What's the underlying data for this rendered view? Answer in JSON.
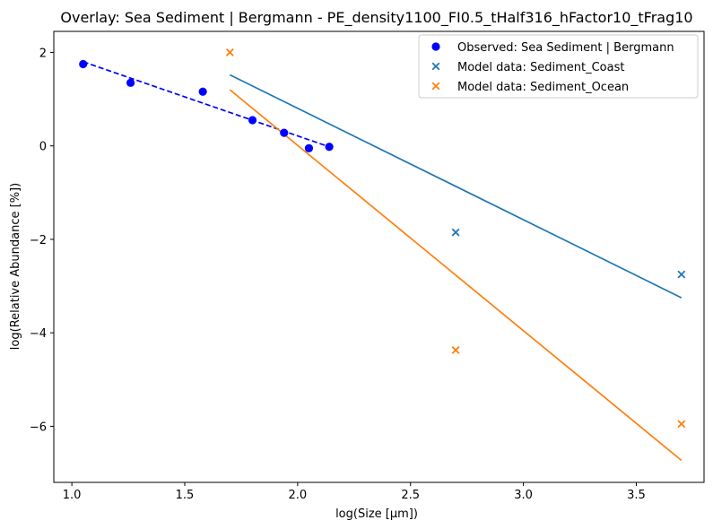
{
  "chart_data": {
    "type": "scatter",
    "title": "Overlay: Sea Sediment | Bergmann - PE_density1100_FI0.5_tHalf316_hFactor10_tFrag10",
    "xlabel": "log(Size [µm])",
    "ylabel": "log(Relative Abundance [%])",
    "xlim": [
      0.92,
      3.8
    ],
    "ylim": [
      -7.2,
      2.45
    ],
    "xticks": [
      1.0,
      1.5,
      2.0,
      2.5,
      3.0,
      3.5
    ],
    "xtick_labels": [
      "1.0",
      "1.5",
      "2.0",
      "2.5",
      "3.0",
      "3.5"
    ],
    "yticks": [
      2,
      0,
      -2,
      -4,
      -6
    ],
    "ytick_labels": [
      "2",
      "0",
      "−2",
      "−4",
      "−6"
    ],
    "grid": true,
    "legend_position": "top-right",
    "series": [
      {
        "name": "Observed: Sea Sediment | Bergmann",
        "kind": "scatter",
        "marker": "circle",
        "color": "#0000ff",
        "x": [
          1.05,
          1.26,
          1.58,
          1.8,
          1.94,
          2.05,
          2.14
        ],
        "y": [
          1.75,
          1.35,
          1.16,
          0.55,
          0.28,
          -0.05,
          -0.02
        ]
      },
      {
        "name": "Model data: Sediment_Coast",
        "kind": "scatter",
        "marker": "x",
        "color": "#1f77b4",
        "x": [
          2.7,
          3.7
        ],
        "y": [
          -1.85,
          -2.75
        ]
      },
      {
        "name": "Model data: Sediment_Ocean",
        "kind": "scatter",
        "marker": "x",
        "color": "#ff7f0e",
        "x": [
          1.7,
          2.7,
          3.7
        ],
        "y": [
          2.0,
          -4.37,
          -5.95
        ]
      }
    ],
    "fit_lines": [
      {
        "color": "#0000ff",
        "style": "dashed",
        "x": [
          1.05,
          2.14
        ],
        "y": [
          1.8,
          -0.02
        ]
      },
      {
        "color": "#1f77b4",
        "style": "solid",
        "x": [
          1.7,
          3.7
        ],
        "y": [
          1.52,
          -3.25
        ]
      },
      {
        "color": "#ff7f0e",
        "style": "solid",
        "x": [
          1.7,
          3.7
        ],
        "y": [
          1.2,
          -6.73
        ]
      }
    ]
  }
}
